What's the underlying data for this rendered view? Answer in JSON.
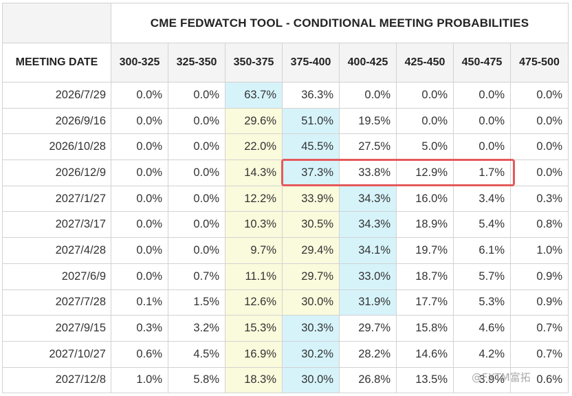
{
  "table": {
    "title": "CME FEDWATCH TOOL - CONDITIONAL MEETING PROBABILITIES",
    "meeting_date_header": "MEETING DATE",
    "ranges": [
      "300-325",
      "325-350",
      "350-375",
      "375-400",
      "400-425",
      "425-450",
      "450-475",
      "475-500"
    ],
    "rows": [
      {
        "date": "2026/7/29",
        "values": [
          "0.0%",
          "0.0%",
          "63.7%",
          "36.3%",
          "0.0%",
          "0.0%",
          "0.0%",
          "0.0%"
        ]
      },
      {
        "date": "2026/9/16",
        "values": [
          "0.0%",
          "0.0%",
          "29.6%",
          "51.0%",
          "19.5%",
          "0.0%",
          "0.0%",
          "0.0%"
        ]
      },
      {
        "date": "2026/10/28",
        "values": [
          "0.0%",
          "0.0%",
          "22.0%",
          "45.5%",
          "27.5%",
          "5.0%",
          "0.0%",
          "0.0%"
        ]
      },
      {
        "date": "2026/12/9",
        "values": [
          "0.0%",
          "0.0%",
          "14.3%",
          "37.3%",
          "33.8%",
          "12.9%",
          "1.7%",
          "0.0%"
        ]
      },
      {
        "date": "2027/1/27",
        "values": [
          "0.0%",
          "0.0%",
          "12.2%",
          "33.9%",
          "34.3%",
          "16.0%",
          "3.4%",
          "0.3%"
        ]
      },
      {
        "date": "2027/3/17",
        "values": [
          "0.0%",
          "0.0%",
          "10.3%",
          "30.5%",
          "34.3%",
          "18.9%",
          "5.4%",
          "0.8%"
        ]
      },
      {
        "date": "2027/4/28",
        "values": [
          "0.0%",
          "0.0%",
          "9.7%",
          "29.4%",
          "34.1%",
          "19.7%",
          "6.1%",
          "1.0%"
        ]
      },
      {
        "date": "2027/6/9",
        "values": [
          "0.0%",
          "0.7%",
          "11.1%",
          "29.7%",
          "33.0%",
          "18.7%",
          "5.7%",
          "0.9%"
        ]
      },
      {
        "date": "2027/7/28",
        "values": [
          "0.1%",
          "1.5%",
          "12.6%",
          "30.0%",
          "31.9%",
          "17.7%",
          "5.3%",
          "0.9%"
        ]
      },
      {
        "date": "2027/9/15",
        "values": [
          "0.3%",
          "3.2%",
          "15.3%",
          "30.3%",
          "29.7%",
          "15.8%",
          "4.6%",
          "0.7%"
        ]
      },
      {
        "date": "2027/10/27",
        "values": [
          "0.6%",
          "4.5%",
          "16.9%",
          "30.2%",
          "28.2%",
          "14.6%",
          "4.2%",
          "0.7%"
        ]
      },
      {
        "date": "2027/12/8",
        "values": [
          "1.0%",
          "5.8%",
          "18.3%",
          "30.0%",
          "26.8%",
          "13.5%",
          "3.9%",
          "0.6%"
        ]
      }
    ],
    "highlights": [
      {
        "row": 0,
        "col": 2,
        "color": "blue"
      },
      {
        "row": 0,
        "col": 3,
        "color": "none"
      },
      {
        "row": 1,
        "col": 2,
        "color": "yellow"
      },
      {
        "row": 1,
        "col": 3,
        "color": "blue"
      },
      {
        "row": 2,
        "col": 2,
        "color": "yellow"
      },
      {
        "row": 2,
        "col": 3,
        "color": "blue"
      },
      {
        "row": 3,
        "col": 2,
        "color": "yellow"
      },
      {
        "row": 3,
        "col": 3,
        "color": "blue"
      },
      {
        "row": 4,
        "col": 2,
        "color": "yellow"
      },
      {
        "row": 4,
        "col": 3,
        "color": "yellow"
      },
      {
        "row": 4,
        "col": 4,
        "color": "blue"
      },
      {
        "row": 5,
        "col": 2,
        "color": "yellow"
      },
      {
        "row": 5,
        "col": 3,
        "color": "yellow"
      },
      {
        "row": 5,
        "col": 4,
        "color": "blue"
      },
      {
        "row": 6,
        "col": 2,
        "color": "yellow"
      },
      {
        "row": 6,
        "col": 3,
        "color": "yellow"
      },
      {
        "row": 6,
        "col": 4,
        "color": "blue"
      },
      {
        "row": 7,
        "col": 2,
        "color": "yellow"
      },
      {
        "row": 7,
        "col": 3,
        "color": "yellow"
      },
      {
        "row": 7,
        "col": 4,
        "color": "blue"
      },
      {
        "row": 8,
        "col": 2,
        "color": "yellow"
      },
      {
        "row": 8,
        "col": 3,
        "color": "yellow"
      },
      {
        "row": 8,
        "col": 4,
        "color": "blue"
      },
      {
        "row": 9,
        "col": 2,
        "color": "yellow"
      },
      {
        "row": 9,
        "col": 3,
        "color": "blue"
      },
      {
        "row": 10,
        "col": 2,
        "color": "yellow"
      },
      {
        "row": 10,
        "col": 3,
        "color": "blue"
      },
      {
        "row": 11,
        "col": 2,
        "color": "yellow"
      },
      {
        "row": 11,
        "col": 3,
        "color": "blue"
      }
    ],
    "highlight_colors": {
      "blue": "#d6f3fa",
      "yellow": "#fafadc"
    },
    "annotation": {
      "row": 3,
      "col_start": 3,
      "col_end": 6,
      "color": "#e5595b"
    }
  },
  "watermark": "@FXTM富拓"
}
